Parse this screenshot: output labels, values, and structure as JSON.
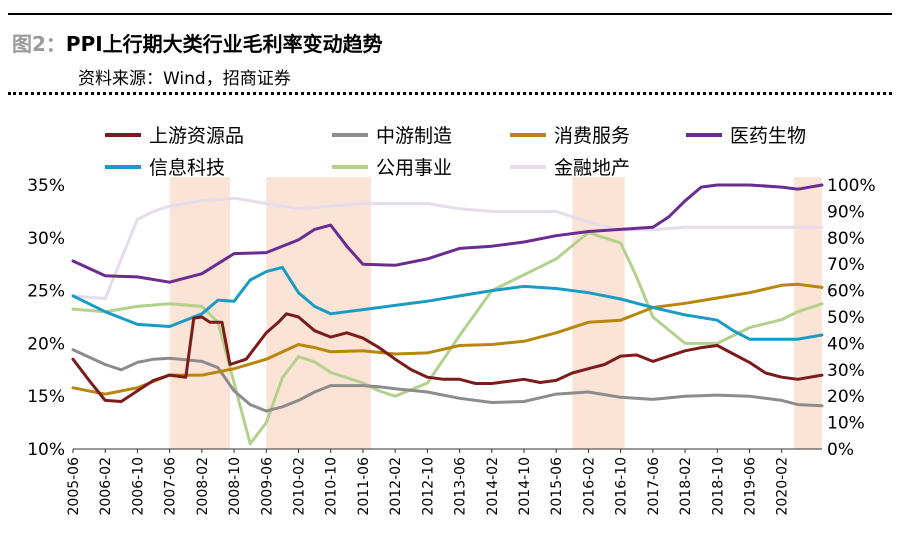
{
  "header": {
    "fig_label": "图2：",
    "title": "PPI上行期大类行业毛利率变动趋势",
    "source": "资料来源：Wind，招商证券"
  },
  "chart_data": {
    "type": "line",
    "title": "PPI上行期大类行业毛利率变动趋势",
    "x_range": [
      "2005-06",
      "2020-12"
    ],
    "x_ticks": [
      "2005-06",
      "2006-02",
      "2006-10",
      "2007-06",
      "2008-02",
      "2008-10",
      "2009-06",
      "2010-02",
      "2010-10",
      "2011-06",
      "2012-02",
      "2012-10",
      "2013-06",
      "2014-02",
      "2014-10",
      "2015-06",
      "2016-02",
      "2016-10",
      "2017-06",
      "2018-02",
      "2018-10",
      "2019-06",
      "2020-02"
    ],
    "y_left": {
      "min": 10,
      "max": 35,
      "ticks": [
        "10%",
        "15%",
        "20%",
        "25%",
        "30%",
        "35%"
      ]
    },
    "y_right": {
      "min": 0,
      "max": 100,
      "ticks": [
        "0%",
        "10%",
        "20%",
        "30%",
        "40%",
        "50%",
        "60%",
        "70%",
        "80%",
        "90%",
        "100%"
      ]
    },
    "grid": false,
    "legend_position": "top",
    "shaded_periods": [
      [
        "2007-06",
        "2008-09"
      ],
      [
        "2009-06",
        "2011-08"
      ],
      [
        "2015-10",
        "2016-11"
      ],
      [
        "2020-05",
        "2020-12"
      ]
    ],
    "series": [
      {
        "name": "上游资源品",
        "color": "#7b1c1c",
        "axis": "left",
        "points": [
          [
            "2005-06",
            18.5
          ],
          [
            "2005-10",
            16.5
          ],
          [
            "2006-02",
            14.6
          ],
          [
            "2006-06",
            14.5
          ],
          [
            "2006-10",
            15.5
          ],
          [
            "2007-02",
            16.5
          ],
          [
            "2007-06",
            17.0
          ],
          [
            "2007-10",
            16.8
          ],
          [
            "2007-12",
            22.4
          ],
          [
            "2008-02",
            22.5
          ],
          [
            "2008-04",
            22.0
          ],
          [
            "2008-07",
            22.0
          ],
          [
            "2008-09",
            18.0
          ],
          [
            "2009-01",
            18.5
          ],
          [
            "2009-06",
            21.0
          ],
          [
            "2009-09",
            22.0
          ],
          [
            "2009-11",
            22.8
          ],
          [
            "2010-02",
            22.5
          ],
          [
            "2010-06",
            21.2
          ],
          [
            "2010-10",
            20.6
          ],
          [
            "2011-02",
            21.0
          ],
          [
            "2011-06",
            20.5
          ],
          [
            "2011-10",
            19.6
          ],
          [
            "2012-02",
            18.5
          ],
          [
            "2012-06",
            17.5
          ],
          [
            "2012-10",
            16.8
          ],
          [
            "2013-02",
            16.6
          ],
          [
            "2013-06",
            16.6
          ],
          [
            "2013-10",
            16.2
          ],
          [
            "2014-02",
            16.2
          ],
          [
            "2014-06",
            16.4
          ],
          [
            "2014-10",
            16.6
          ],
          [
            "2015-02",
            16.3
          ],
          [
            "2015-06",
            16.5
          ],
          [
            "2015-10",
            17.2
          ],
          [
            "2016-02",
            17.6
          ],
          [
            "2016-06",
            18.0
          ],
          [
            "2016-10",
            18.8
          ],
          [
            "2017-02",
            18.9
          ],
          [
            "2017-06",
            18.3
          ],
          [
            "2017-10",
            18.8
          ],
          [
            "2018-02",
            19.3
          ],
          [
            "2018-06",
            19.6
          ],
          [
            "2018-10",
            19.8
          ],
          [
            "2019-02",
            19.0
          ],
          [
            "2019-06",
            18.2
          ],
          [
            "2019-10",
            17.2
          ],
          [
            "2020-02",
            16.8
          ],
          [
            "2020-06",
            16.6
          ],
          [
            "2020-12",
            17.0
          ]
        ]
      },
      {
        "name": "中游制造",
        "color": "#8c8c8c",
        "axis": "left",
        "points": [
          [
            "2005-06",
            19.4
          ],
          [
            "2006-02",
            18.0
          ],
          [
            "2006-06",
            17.5
          ],
          [
            "2006-10",
            18.2
          ],
          [
            "2007-02",
            18.5
          ],
          [
            "2007-06",
            18.6
          ],
          [
            "2008-02",
            18.3
          ],
          [
            "2008-06",
            17.7
          ],
          [
            "2008-10",
            15.5
          ],
          [
            "2009-02",
            14.2
          ],
          [
            "2009-06",
            13.6
          ],
          [
            "2009-10",
            14.0
          ],
          [
            "2010-02",
            14.6
          ],
          [
            "2010-06",
            15.4
          ],
          [
            "2010-10",
            16.0
          ],
          [
            "2011-02",
            16.0
          ],
          [
            "2011-06",
            16.0
          ],
          [
            "2011-10",
            15.9
          ],
          [
            "2012-02",
            15.7
          ],
          [
            "2012-10",
            15.4
          ],
          [
            "2013-06",
            14.8
          ],
          [
            "2014-02",
            14.4
          ],
          [
            "2014-10",
            14.5
          ],
          [
            "2015-06",
            15.2
          ],
          [
            "2016-02",
            15.4
          ],
          [
            "2016-10",
            14.9
          ],
          [
            "2017-06",
            14.7
          ],
          [
            "2018-02",
            15.0
          ],
          [
            "2018-10",
            15.1
          ],
          [
            "2019-06",
            15.0
          ],
          [
            "2020-02",
            14.6
          ],
          [
            "2020-06",
            14.2
          ],
          [
            "2020-12",
            14.1
          ]
        ]
      },
      {
        "name": "消费服务",
        "color": "#b8860b",
        "axis": "left",
        "points": [
          [
            "2005-06",
            15.8
          ],
          [
            "2006-02",
            15.2
          ],
          [
            "2006-10",
            15.8
          ],
          [
            "2007-06",
            17.0
          ],
          [
            "2008-02",
            17.0
          ],
          [
            "2008-10",
            17.6
          ],
          [
            "2009-06",
            18.5
          ],
          [
            "2010-02",
            19.9
          ],
          [
            "2010-06",
            19.6
          ],
          [
            "2010-10",
            19.2
          ],
          [
            "2011-06",
            19.3
          ],
          [
            "2012-02",
            19.0
          ],
          [
            "2012-10",
            19.1
          ],
          [
            "2013-06",
            19.8
          ],
          [
            "2014-02",
            19.9
          ],
          [
            "2014-10",
            20.2
          ],
          [
            "2015-06",
            21.0
          ],
          [
            "2016-02",
            22.0
          ],
          [
            "2016-10",
            22.2
          ],
          [
            "2017-06",
            23.4
          ],
          [
            "2018-02",
            23.8
          ],
          [
            "2018-10",
            24.3
          ],
          [
            "2019-06",
            24.8
          ],
          [
            "2020-02",
            25.5
          ],
          [
            "2020-06",
            25.6
          ],
          [
            "2020-12",
            25.3
          ]
        ]
      },
      {
        "name": "医药生物",
        "color": "#6a2c91",
        "axis": "left",
        "points": [
          [
            "2005-06",
            27.8
          ],
          [
            "2006-02",
            26.4
          ],
          [
            "2006-10",
            26.3
          ],
          [
            "2007-06",
            25.8
          ],
          [
            "2008-02",
            26.6
          ],
          [
            "2008-10",
            28.5
          ],
          [
            "2009-06",
            28.6
          ],
          [
            "2010-02",
            29.8
          ],
          [
            "2010-06",
            30.8
          ],
          [
            "2010-10",
            31.2
          ],
          [
            "2011-02",
            29.2
          ],
          [
            "2011-06",
            27.5
          ],
          [
            "2012-02",
            27.4
          ],
          [
            "2012-10",
            28.0
          ],
          [
            "2013-06",
            29.0
          ],
          [
            "2014-02",
            29.2
          ],
          [
            "2014-10",
            29.6
          ],
          [
            "2015-06",
            30.2
          ],
          [
            "2016-02",
            30.6
          ],
          [
            "2016-10",
            30.8
          ],
          [
            "2017-06",
            31.0
          ],
          [
            "2017-10",
            32.0
          ],
          [
            "2018-02",
            33.5
          ],
          [
            "2018-06",
            34.8
          ],
          [
            "2018-10",
            35.0
          ],
          [
            "2019-06",
            35.0
          ],
          [
            "2020-02",
            34.8
          ],
          [
            "2020-06",
            34.6
          ],
          [
            "2020-12",
            35.0
          ]
        ]
      },
      {
        "name": "信息科技",
        "color": "#1a9bc4",
        "axis": "left",
        "points": [
          [
            "2005-06",
            24.5
          ],
          [
            "2006-02",
            23.0
          ],
          [
            "2006-10",
            21.8
          ],
          [
            "2007-06",
            21.6
          ],
          [
            "2008-02",
            22.8
          ],
          [
            "2008-06",
            24.1
          ],
          [
            "2008-10",
            24.0
          ],
          [
            "2009-02",
            26.0
          ],
          [
            "2009-06",
            26.8
          ],
          [
            "2009-10",
            27.2
          ],
          [
            "2010-02",
            24.8
          ],
          [
            "2010-06",
            23.5
          ],
          [
            "2010-10",
            22.8
          ],
          [
            "2011-02",
            23.0
          ],
          [
            "2011-06",
            23.2
          ],
          [
            "2012-02",
            23.6
          ],
          [
            "2012-10",
            24.0
          ],
          [
            "2013-06",
            24.5
          ],
          [
            "2014-02",
            25.0
          ],
          [
            "2014-10",
            25.4
          ],
          [
            "2015-06",
            25.2
          ],
          [
            "2016-02",
            24.8
          ],
          [
            "2016-10",
            24.2
          ],
          [
            "2017-06",
            23.4
          ],
          [
            "2018-02",
            22.7
          ],
          [
            "2018-10",
            22.2
          ],
          [
            "2019-02",
            21.2
          ],
          [
            "2019-06",
            20.4
          ],
          [
            "2020-02",
            20.4
          ],
          [
            "2020-06",
            20.4
          ],
          [
            "2020-12",
            20.8
          ]
        ]
      },
      {
        "name": "公用事业",
        "color": "#b3d18c",
        "axis": "right",
        "points": [
          [
            "2005-06",
            53
          ],
          [
            "2006-02",
            52
          ],
          [
            "2006-10",
            54
          ],
          [
            "2007-06",
            55
          ],
          [
            "2008-02",
            54
          ],
          [
            "2008-06",
            48
          ],
          [
            "2008-10",
            25
          ],
          [
            "2009-02",
            2
          ],
          [
            "2009-06",
            10
          ],
          [
            "2009-10",
            27
          ],
          [
            "2010-02",
            35
          ],
          [
            "2010-06",
            33
          ],
          [
            "2010-10",
            29
          ],
          [
            "2011-02",
            27
          ],
          [
            "2011-06",
            25
          ],
          [
            "2011-10",
            22
          ],
          [
            "2012-02",
            20
          ],
          [
            "2012-10",
            25
          ],
          [
            "2013-06",
            43
          ],
          [
            "2014-02",
            60
          ],
          [
            "2014-10",
            66
          ],
          [
            "2015-06",
            72
          ],
          [
            "2016-02",
            82
          ],
          [
            "2016-06",
            80
          ],
          [
            "2016-10",
            78
          ],
          [
            "2017-02",
            65
          ],
          [
            "2017-06",
            50
          ],
          [
            "2018-02",
            40
          ],
          [
            "2018-10",
            40
          ],
          [
            "2019-02",
            43
          ],
          [
            "2019-06",
            46
          ],
          [
            "2020-02",
            49
          ],
          [
            "2020-06",
            52
          ],
          [
            "2020-12",
            55
          ]
        ]
      },
      {
        "name": "金融地产",
        "color": "#e6dcea",
        "axis": "right",
        "points": [
          [
            "2005-06",
            58
          ],
          [
            "2006-02",
            57
          ],
          [
            "2006-10",
            87
          ],
          [
            "2007-02",
            90
          ],
          [
            "2007-06",
            92
          ],
          [
            "2008-02",
            94
          ],
          [
            "2008-10",
            95
          ],
          [
            "2009-06",
            93
          ],
          [
            "2010-02",
            91
          ],
          [
            "2010-10",
            92
          ],
          [
            "2011-06",
            93
          ],
          [
            "2012-02",
            93
          ],
          [
            "2012-10",
            93
          ],
          [
            "2013-06",
            91
          ],
          [
            "2014-02",
            90
          ],
          [
            "2014-10",
            90
          ],
          [
            "2015-06",
            90
          ],
          [
            "2016-02",
            86
          ],
          [
            "2016-10",
            83
          ],
          [
            "2017-06",
            83
          ],
          [
            "2018-02",
            84
          ],
          [
            "2018-10",
            84
          ],
          [
            "2019-06",
            84
          ],
          [
            "2020-02",
            84
          ],
          [
            "2020-12",
            84
          ]
        ]
      }
    ]
  }
}
